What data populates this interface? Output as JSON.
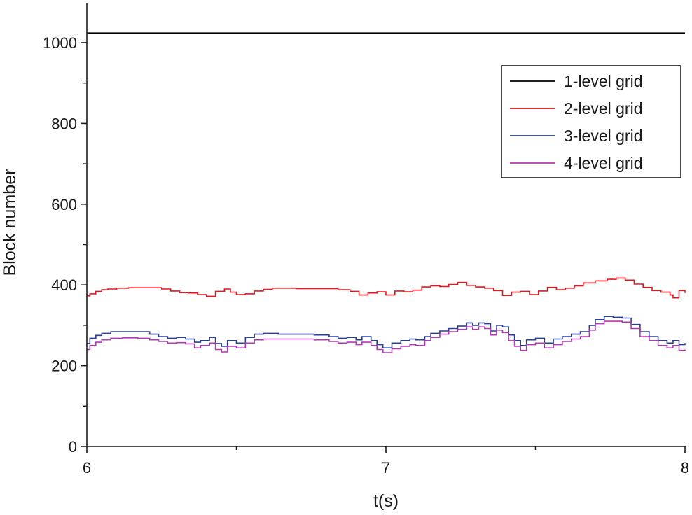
{
  "chart_data": {
    "type": "line",
    "title": "",
    "xlabel": "t(s)",
    "ylabel": "Block number",
    "xlim": [
      6,
      8
    ],
    "ylim": [
      0,
      1100
    ],
    "x_ticks": [
      6,
      7,
      8
    ],
    "x_minor_ticks": [
      6.5,
      7.5
    ],
    "y_ticks": [
      0,
      200,
      400,
      600,
      800,
      1000
    ],
    "y_minor_ticks": [
      100,
      300,
      500,
      700,
      900
    ],
    "grid": false,
    "legend_position": "top-right",
    "series": [
      {
        "name": "1-level grid",
        "color": "#000000",
        "step": false,
        "points": [
          [
            6.0,
            1024
          ],
          [
            8.0,
            1024
          ]
        ]
      },
      {
        "name": "2-level grid",
        "color": "#e8141e",
        "step": true,
        "points": [
          [
            6.0,
            373
          ],
          [
            6.01,
            378
          ],
          [
            6.03,
            384
          ],
          [
            6.05,
            388
          ],
          [
            6.07,
            390
          ],
          [
            6.1,
            392
          ],
          [
            6.14,
            393
          ],
          [
            6.2,
            393
          ],
          [
            6.25,
            390
          ],
          [
            6.28,
            385
          ],
          [
            6.31,
            381
          ],
          [
            6.34,
            380
          ],
          [
            6.37,
            376
          ],
          [
            6.4,
            372
          ],
          [
            6.43,
            384
          ],
          [
            6.46,
            390
          ],
          [
            6.48,
            382
          ],
          [
            6.5,
            376
          ],
          [
            6.53,
            378
          ],
          [
            6.56,
            385
          ],
          [
            6.59,
            389
          ],
          [
            6.62,
            392
          ],
          [
            6.7,
            391
          ],
          [
            6.78,
            391
          ],
          [
            6.84,
            388
          ],
          [
            6.88,
            384
          ],
          [
            6.91,
            375
          ],
          [
            6.94,
            380
          ],
          [
            6.97,
            383
          ],
          [
            7.0,
            375
          ],
          [
            7.03,
            385
          ],
          [
            7.06,
            383
          ],
          [
            7.09,
            387
          ],
          [
            7.12,
            395
          ],
          [
            7.15,
            398
          ],
          [
            7.18,
            396
          ],
          [
            7.21,
            401
          ],
          [
            7.24,
            406
          ],
          [
            7.27,
            399
          ],
          [
            7.3,
            395
          ],
          [
            7.33,
            392
          ],
          [
            7.36,
            386
          ],
          [
            7.39,
            374
          ],
          [
            7.42,
            382
          ],
          [
            7.45,
            384
          ],
          [
            7.48,
            376
          ],
          [
            7.51,
            385
          ],
          [
            7.54,
            394
          ],
          [
            7.57,
            388
          ],
          [
            7.6,
            392
          ],
          [
            7.63,
            398
          ],
          [
            7.66,
            405
          ],
          [
            7.7,
            410
          ],
          [
            7.74,
            414
          ],
          [
            7.77,
            417
          ],
          [
            7.8,
            412
          ],
          [
            7.83,
            402
          ],
          [
            7.86,
            394
          ],
          [
            7.89,
            386
          ],
          [
            7.92,
            382
          ],
          [
            7.95,
            375
          ],
          [
            7.96,
            368
          ],
          [
            7.98,
            386
          ],
          [
            8.0,
            380
          ]
        ]
      },
      {
        "name": "3-level grid",
        "color": "#2b3f99",
        "step": true,
        "points": [
          [
            6.0,
            255
          ],
          [
            6.01,
            268
          ],
          [
            6.03,
            275
          ],
          [
            6.05,
            280
          ],
          [
            6.08,
            284
          ],
          [
            6.12,
            284
          ],
          [
            6.17,
            284
          ],
          [
            6.21,
            278
          ],
          [
            6.24,
            272
          ],
          [
            6.27,
            268
          ],
          [
            6.3,
            270
          ],
          [
            6.33,
            266
          ],
          [
            6.36,
            258
          ],
          [
            6.38,
            262
          ],
          [
            6.41,
            270
          ],
          [
            6.43,
            255
          ],
          [
            6.45,
            248
          ],
          [
            6.47,
            262
          ],
          [
            6.5,
            256
          ],
          [
            6.53,
            270
          ],
          [
            6.56,
            278
          ],
          [
            6.59,
            280
          ],
          [
            6.64,
            278
          ],
          [
            6.7,
            278
          ],
          [
            6.76,
            276
          ],
          [
            6.81,
            272
          ],
          [
            6.84,
            268
          ],
          [
            6.87,
            270
          ],
          [
            6.9,
            264
          ],
          [
            6.92,
            272
          ],
          [
            6.95,
            262
          ],
          [
            6.97,
            252
          ],
          [
            6.99,
            244
          ],
          [
            7.02,
            256
          ],
          [
            7.05,
            262
          ],
          [
            7.08,
            266
          ],
          [
            7.1,
            264
          ],
          [
            7.13,
            272
          ],
          [
            7.15,
            280
          ],
          [
            7.18,
            286
          ],
          [
            7.21,
            292
          ],
          [
            7.24,
            298
          ],
          [
            7.27,
            306
          ],
          [
            7.29,
            300
          ],
          [
            7.31,
            306
          ],
          [
            7.33,
            304
          ],
          [
            7.35,
            286
          ],
          [
            7.37,
            300
          ],
          [
            7.39,
            296
          ],
          [
            7.41,
            276
          ],
          [
            7.43,
            262
          ],
          [
            7.45,
            250
          ],
          [
            7.47,
            264
          ],
          [
            7.5,
            268
          ],
          [
            7.53,
            256
          ],
          [
            7.56,
            266
          ],
          [
            7.59,
            272
          ],
          [
            7.62,
            278
          ],
          [
            7.65,
            284
          ],
          [
            7.68,
            300
          ],
          [
            7.7,
            314
          ],
          [
            7.73,
            322
          ],
          [
            7.76,
            320
          ],
          [
            7.79,
            318
          ],
          [
            7.82,
            302
          ],
          [
            7.85,
            284
          ],
          [
            7.88,
            272
          ],
          [
            7.91,
            262
          ],
          [
            7.94,
            256
          ],
          [
            7.96,
            262
          ],
          [
            7.98,
            252
          ],
          [
            8.0,
            256
          ]
        ]
      },
      {
        "name": "4-level grid",
        "color": "#b03ab0",
        "step": true,
        "points": [
          [
            6.0,
            240
          ],
          [
            6.01,
            250
          ],
          [
            6.03,
            258
          ],
          [
            6.05,
            264
          ],
          [
            6.08,
            268
          ],
          [
            6.12,
            269
          ],
          [
            6.17,
            268
          ],
          [
            6.21,
            264
          ],
          [
            6.24,
            260
          ],
          [
            6.27,
            256
          ],
          [
            6.3,
            257
          ],
          [
            6.33,
            254
          ],
          [
            6.36,
            244
          ],
          [
            6.38,
            250
          ],
          [
            6.41,
            256
          ],
          [
            6.43,
            240
          ],
          [
            6.45,
            234
          ],
          [
            6.47,
            248
          ],
          [
            6.5,
            244
          ],
          [
            6.53,
            256
          ],
          [
            6.56,
            264
          ],
          [
            6.59,
            266
          ],
          [
            6.64,
            266
          ],
          [
            6.7,
            266
          ],
          [
            6.76,
            264
          ],
          [
            6.81,
            260
          ],
          [
            6.84,
            256
          ],
          [
            6.87,
            258
          ],
          [
            6.9,
            252
          ],
          [
            6.92,
            258
          ],
          [
            6.95,
            250
          ],
          [
            6.97,
            240
          ],
          [
            6.99,
            232
          ],
          [
            7.02,
            242
          ],
          [
            7.05,
            248
          ],
          [
            7.08,
            252
          ],
          [
            7.1,
            250
          ],
          [
            7.13,
            262
          ],
          [
            7.15,
            270
          ],
          [
            7.18,
            278
          ],
          [
            7.21,
            284
          ],
          [
            7.24,
            290
          ],
          [
            7.27,
            296
          ],
          [
            7.29,
            290
          ],
          [
            7.31,
            296
          ],
          [
            7.33,
            292
          ],
          [
            7.35,
            276
          ],
          [
            7.37,
            288
          ],
          [
            7.39,
            282
          ],
          [
            7.41,
            262
          ],
          [
            7.43,
            248
          ],
          [
            7.45,
            238
          ],
          [
            7.47,
            252
          ],
          [
            7.5,
            256
          ],
          [
            7.53,
            244
          ],
          [
            7.56,
            252
          ],
          [
            7.59,
            260
          ],
          [
            7.62,
            266
          ],
          [
            7.65,
            272
          ],
          [
            7.68,
            288
          ],
          [
            7.7,
            304
          ],
          [
            7.73,
            310
          ],
          [
            7.76,
            310
          ],
          [
            7.79,
            308
          ],
          [
            7.82,
            292
          ],
          [
            7.85,
            272
          ],
          [
            7.88,
            262
          ],
          [
            7.91,
            250
          ],
          [
            7.94,
            244
          ],
          [
            7.96,
            250
          ],
          [
            7.98,
            238
          ],
          [
            8.0,
            240
          ]
        ]
      }
    ]
  }
}
